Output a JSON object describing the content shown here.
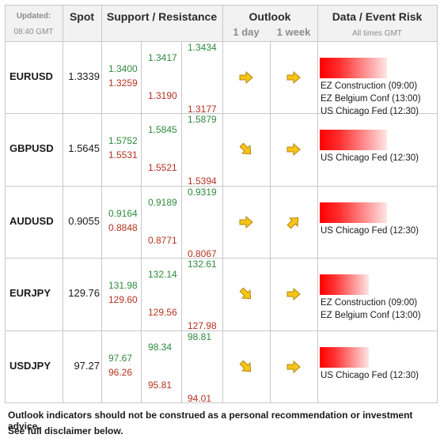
{
  "header": {
    "updated_label": "Updated:",
    "updated_time": "08:40 GMT",
    "spot": "Spot",
    "support_resistance": "Support / Resistance",
    "outlook": "Outlook",
    "outlook_1day": "1 day",
    "outlook_1week": "1 week",
    "data_event_risk": "Data / Event Risk",
    "all_times": "All times GMT"
  },
  "rows": [
    {
      "pair": "EURUSD",
      "spot": "1.3339",
      "s1": "1.3400",
      "s2": "1.3417",
      "s3": "1.3434",
      "r1": "1.3259",
      "r2": "1.3190",
      "r3": "1.3177",
      "day_arrow": "right-arrow-icon",
      "week_arrow": "right-arrow-icon",
      "events": [
        "EZ Construction (09:00)",
        "EZ Belgium Conf (13:00)",
        "US Chicago Fed (12:30)"
      ]
    },
    {
      "pair": "GBPUSD",
      "spot": "1.5645",
      "s1": "1.5752",
      "s2": "1.5845",
      "s3": "1.5879",
      "r1": "1.5531",
      "r2": "1.5521",
      "r3": "1.5394",
      "day_arrow": "down-right-arrow-icon",
      "week_arrow": "right-arrow-icon",
      "events": [
        "US Chicago Fed (12:30)"
      ]
    },
    {
      "pair": "AUDUSD",
      "spot": "0.9055",
      "s1": "0.9164",
      "s2": "0.9189",
      "s3": "0.9319",
      "r1": "0.8848",
      "r2": "0.8771",
      "r3": "0.8067",
      "day_arrow": "right-arrow-icon",
      "week_arrow": "up-right-arrow-icon",
      "events": [
        "US Chicago Fed (12:30)"
      ]
    },
    {
      "pair": "EURJPY",
      "spot": "129.76",
      "s1": "131.98",
      "s2": "132.14",
      "s3": "132.61",
      "r1": "129.60",
      "r2": "129.56",
      "r3": "127.98",
      "day_arrow": "down-right-arrow-icon",
      "week_arrow": "right-arrow-icon",
      "events": [
        "EZ Construction (09:00)",
        "EZ Belgium Conf (13:00)"
      ]
    },
    {
      "pair": "USDJPY",
      "spot": "97.27",
      "s1": "97.67",
      "s2": "98.34",
      "s3": "98.81",
      "r1": "96.26",
      "r2": "95.81",
      "r3": "94.01",
      "day_arrow": "down-right-arrow-icon",
      "week_arrow": "right-arrow-icon",
      "events": [
        "US Chicago Fed (12:30)"
      ]
    }
  ],
  "footer": {
    "line1": "Outlook indicators should not be construed as a personal recommendation or investment advice.",
    "line2": "See full disclaimer below."
  },
  "colors": {
    "support": "#2e8b3d",
    "resistance": "#b5321f",
    "arrow": "#f5c518",
    "event_bar": "#ff0000"
  }
}
